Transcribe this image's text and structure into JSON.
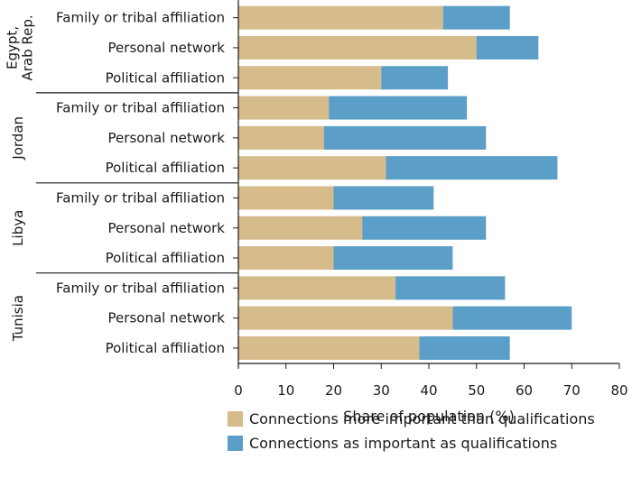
{
  "chart_data": {
    "type": "bar",
    "orientation": "horizontal",
    "stacked": true,
    "xlabel": "Share of population (%)",
    "xlim": [
      0,
      80
    ],
    "xticks": [
      "0",
      "10",
      "20",
      "30",
      "40",
      "50",
      "60",
      "70",
      "80"
    ],
    "legend_position": "bottom-right",
    "colors": {
      "more": "#d6bb8b",
      "as": "#5b9ec7"
    },
    "series": [
      {
        "name": "Connections more important than qualifications",
        "key": "more"
      },
      {
        "name": "Connections as important as qualifications",
        "key": "as"
      }
    ],
    "groups": [
      {
        "name_lines": [
          "Egypt,",
          "Arab Rep."
        ],
        "categories": [
          {
            "label": "Family or tribal affiliation",
            "more": 43,
            "as": 14
          },
          {
            "label": "Personal network",
            "more": 50,
            "as": 13
          },
          {
            "label": "Political affiliation",
            "more": 30,
            "as": 14
          }
        ]
      },
      {
        "name_lines": [
          "Jordan"
        ],
        "categories": [
          {
            "label": "Family or tribal affiliation",
            "more": 19,
            "as": 29
          },
          {
            "label": "Personal network",
            "more": 18,
            "as": 34
          },
          {
            "label": "Political affiliation",
            "more": 31,
            "as": 36
          }
        ]
      },
      {
        "name_lines": [
          "Libya"
        ],
        "categories": [
          {
            "label": "Family or tribal affiliation",
            "more": 20,
            "as": 21
          },
          {
            "label": "Personal network",
            "more": 26,
            "as": 26
          },
          {
            "label": "Political affiliation",
            "more": 20,
            "as": 25
          }
        ]
      },
      {
        "name_lines": [
          "Tunisia"
        ],
        "categories": [
          {
            "label": "Family or tribal affiliation",
            "more": 33,
            "as": 23
          },
          {
            "label": "Personal network",
            "more": 45,
            "as": 25
          },
          {
            "label": "Political affiliation",
            "more": 38,
            "as": 19
          }
        ]
      }
    ]
  }
}
